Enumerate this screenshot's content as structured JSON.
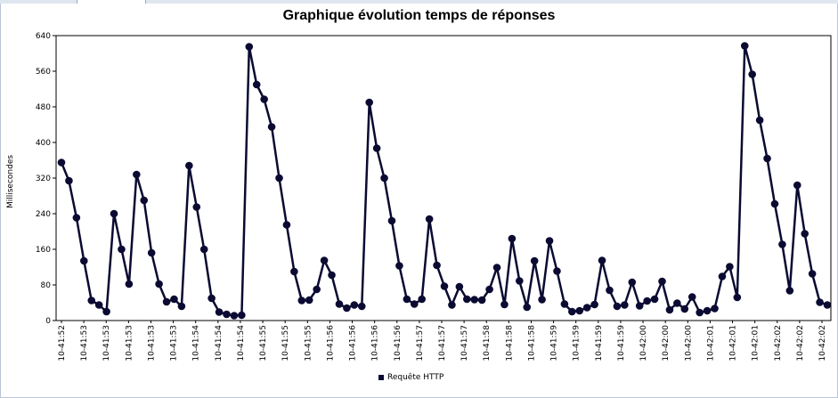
{
  "chart_data": {
    "type": "line",
    "title": "Graphique évolution temps de réponses",
    "ylabel": "Millisecondes",
    "ylim": [
      0,
      640
    ],
    "yticks": [
      0,
      80,
      160,
      240,
      320,
      400,
      480,
      560,
      640
    ],
    "grid": false,
    "legend_position": "bottom",
    "series_color": "#0a0a32",
    "x_labels": [
      "10-41:52",
      "10-41:53",
      "10-41:53",
      "10-41:53",
      "10-41:53",
      "10-41:53",
      "10-41:54",
      "10-41:54",
      "10-41:54",
      "10-41:55",
      "10-41:55",
      "10-41:55",
      "10-41:56",
      "10-41:56",
      "10-41:56",
      "10-41:56",
      "10-41:57",
      "10-41:57",
      "10-41:57",
      "10-41:58",
      "10-41:58",
      "10-41:58",
      "10-41:59",
      "10-41:59",
      "10-41:59",
      "10-41:59",
      "10-42:00",
      "10-42:00",
      "10-42:00",
      "10-42:01",
      "10-42:01",
      "10-42:01",
      "10-42:02",
      "10-42:02",
      "10-42:02"
    ],
    "series": [
      {
        "name": "Requête HTTP",
        "values": [
          355,
          314,
          231,
          134,
          45,
          35,
          20,
          240,
          160,
          82,
          328,
          270,
          152,
          82,
          42,
          48,
          32,
          348,
          255,
          160,
          50,
          19,
          14,
          11,
          12,
          615,
          530,
          497,
          435,
          320,
          215,
          110,
          45,
          46,
          70,
          135,
          102,
          37,
          28,
          35,
          32,
          490,
          387,
          320,
          224,
          123,
          48,
          37,
          48,
          228,
          124,
          77,
          35,
          76,
          48,
          47,
          46,
          70,
          119,
          36,
          184,
          89,
          30,
          134,
          47,
          179,
          111,
          37,
          20,
          22,
          29,
          36,
          135,
          68,
          32,
          35,
          86,
          33,
          44,
          48,
          88,
          24,
          39,
          26,
          53,
          18,
          22,
          27,
          99,
          121,
          52,
          617,
          553,
          450,
          364,
          262,
          171,
          67,
          304,
          195,
          105,
          41,
          35
        ]
      }
    ]
  },
  "legend": {
    "label": "Requête HTTP"
  }
}
